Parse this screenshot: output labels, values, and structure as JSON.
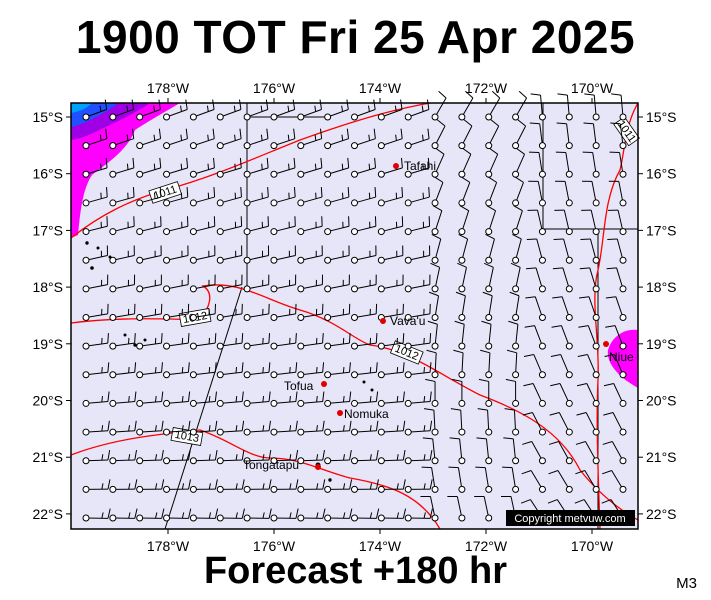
{
  "header": {
    "title": "1900 TOT Fri 25 Apr 2025"
  },
  "footer": {
    "forecast": "Forecast +180 hr",
    "model": "M3"
  },
  "map": {
    "region": {
      "lon_min": -179.8,
      "lon_max": -169.2,
      "lat_min": -22.25,
      "lat_max": -14.75
    },
    "lon_ticks": [
      {
        "lon": -178,
        "label": "178°W"
      },
      {
        "lon": -176,
        "label": "176°W"
      },
      {
        "lon": -174,
        "label": "174°W"
      },
      {
        "lon": -172,
        "label": "172°W"
      },
      {
        "lon": -170,
        "label": "170°W"
      }
    ],
    "lat_ticks": [
      {
        "lat": -15,
        "label": "15°S"
      },
      {
        "lat": -16,
        "label": "16°S"
      },
      {
        "lat": -17,
        "label": "17°S"
      },
      {
        "lat": -18,
        "label": "18°S"
      },
      {
        "lat": -19,
        "label": "19°S"
      },
      {
        "lat": -20,
        "label": "20°S"
      },
      {
        "lat": -21,
        "label": "21°S"
      },
      {
        "lat": -22,
        "label": "22°S"
      }
    ],
    "places": [
      {
        "name": "Tafahi",
        "lon": -173.7,
        "lat": -15.85
      },
      {
        "name": "Vava'u",
        "lon": -174.0,
        "lat": -18.65
      },
      {
        "name": "Niue",
        "lon": -169.9,
        "lat": -19.05
      },
      {
        "name": "Tofua",
        "lon": -175.05,
        "lat": -19.75
      },
      {
        "name": "Nomuka",
        "lon": -174.8,
        "lat": -20.25
      },
      {
        "name": "Tongatapu",
        "lon": -175.2,
        "lat": -21.15
      }
    ],
    "isobars": [
      {
        "label": "1011",
        "color": "#ff0000"
      },
      {
        "label": "1012",
        "color": "#ff0000"
      },
      {
        "label": "1013",
        "color": "#ff0000"
      }
    ],
    "copyright": "Copyright metvuw.com",
    "colors": {
      "ocean": "#e6e6f8",
      "isobar": "#ff0000",
      "rain_heavy": "#ff00ff",
      "rain_mid": "#a000e6",
      "rain_light": "#2050ff"
    }
  }
}
